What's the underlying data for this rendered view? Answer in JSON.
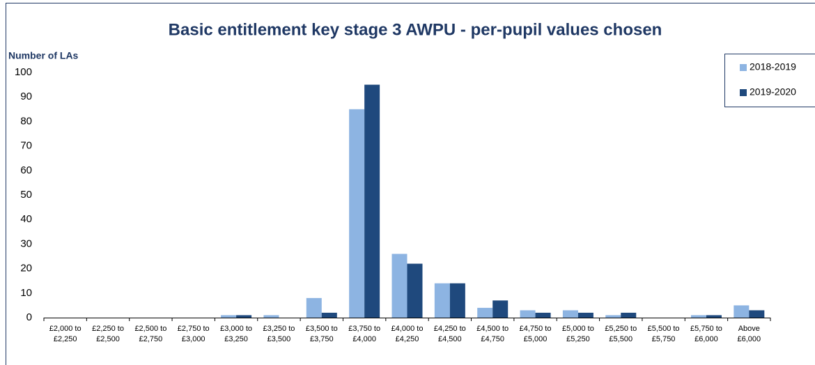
{
  "chart_data": {
    "type": "bar",
    "title": "Basic entitlement key stage 3 AWPU - per-pupil values chosen",
    "y_axis_label": "Number of LAs",
    "categories": [
      "£2,000 to £2,250",
      "£2,250 to £2,500",
      "£2,500 to £2,750",
      "£2,750 to £3,000",
      "£3,000 to £3,250",
      "£3,250 to £3,500",
      "£3,500 to £3,750",
      "£3,750 to £4,000",
      "£4,000 to £4,250",
      "£4,250 to £4,500",
      "£4,500 to £4,750",
      "£4,750 to £5,000",
      "£5,000 to £5,250",
      "£5,250 to £5,500",
      "£5,500 to £5,750",
      "£5,750 to £6,000",
      "Above £6,000"
    ],
    "series": [
      {
        "name": "2018-2019",
        "color": "#8db4e2",
        "values": [
          0,
          0,
          0,
          0,
          1,
          1,
          8,
          85,
          26,
          14,
          4,
          3,
          3,
          1,
          0,
          1,
          5
        ]
      },
      {
        "name": "2019-2020",
        "color": "#1f497d",
        "values": [
          0,
          0,
          0,
          0,
          1,
          0,
          2,
          95,
          22,
          14,
          7,
          2,
          2,
          2,
          0,
          1,
          3
        ]
      }
    ],
    "ylim": [
      0,
      100
    ],
    "yticks": [
      0,
      10,
      20,
      30,
      40,
      50,
      60,
      70,
      80,
      90,
      100
    ],
    "grid": false,
    "legend": "upper right"
  }
}
